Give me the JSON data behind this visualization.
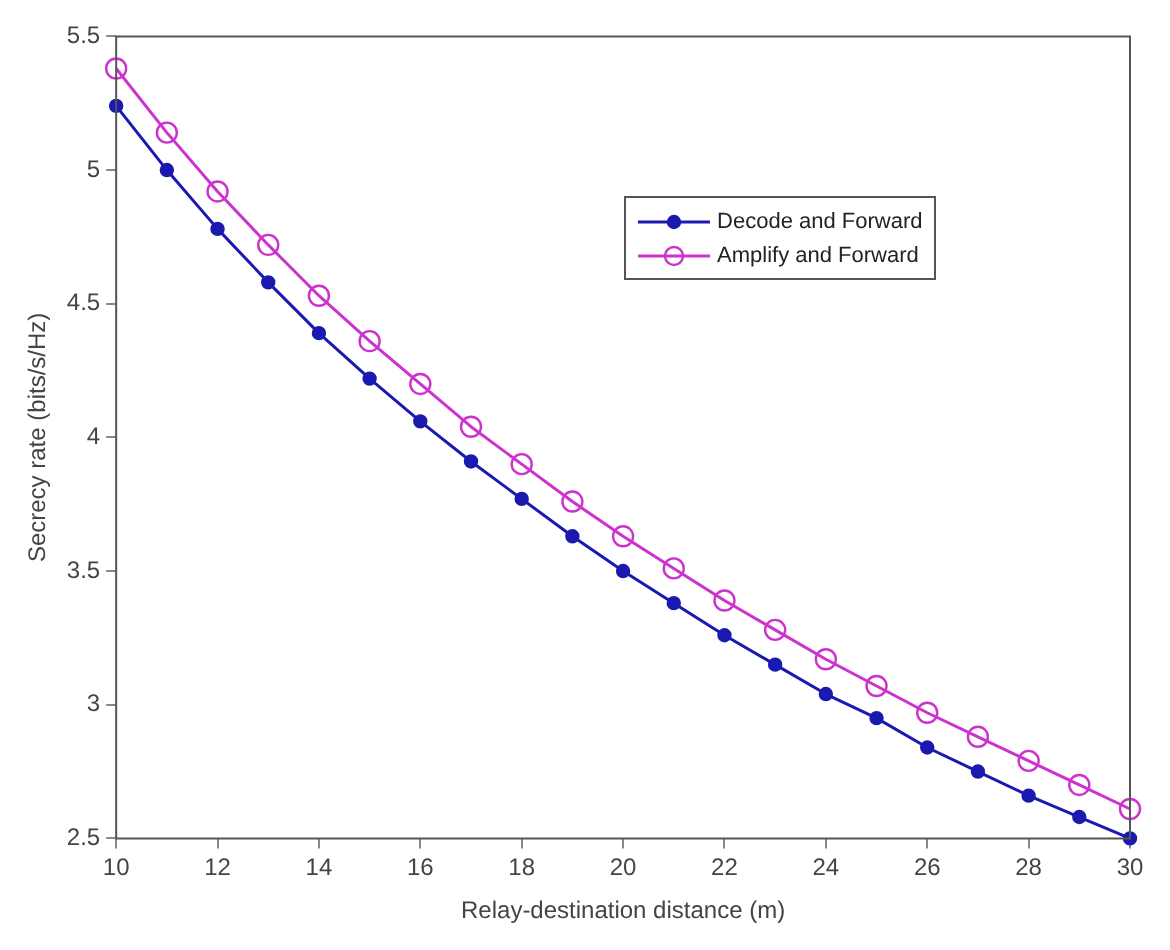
{
  "chart_data": {
    "type": "line",
    "xlabel": "Relay-destination distance (m)",
    "ylabel": "Secrecy rate (bits/s/Hz)",
    "x": [
      10,
      11,
      12,
      13,
      14,
      15,
      16,
      17,
      18,
      19,
      20,
      21,
      22,
      23,
      24,
      25,
      26,
      27,
      28,
      29,
      30
    ],
    "series": [
      {
        "name": "Decode and Forward",
        "color": "#1a1ab0",
        "values": [
          5.24,
          5.0,
          4.78,
          4.58,
          4.39,
          4.22,
          4.06,
          3.91,
          3.77,
          3.63,
          3.5,
          3.38,
          3.26,
          3.15,
          3.04,
          2.95,
          2.84,
          2.75,
          2.66,
          2.58,
          2.5
        ]
      },
      {
        "name": "Amplify and Forward",
        "color": "#cc33cc",
        "values": [
          5.38,
          5.14,
          4.92,
          4.72,
          4.53,
          4.36,
          4.2,
          4.04,
          3.9,
          3.76,
          3.63,
          3.51,
          3.39,
          3.28,
          3.17,
          3.07,
          2.97,
          2.88,
          2.79,
          2.7,
          2.61
        ]
      }
    ],
    "xlim": [
      10,
      30
    ],
    "xticks": [
      10,
      12,
      14,
      16,
      18,
      20,
      22,
      24,
      26,
      28,
      30
    ],
    "ylim": [
      2.5,
      5.5
    ],
    "yticks": [
      2.5,
      3,
      3.5,
      4,
      4.5,
      5,
      5.5
    ],
    "grid": false,
    "legend": "top right",
    "marker": "circle",
    "line_style": "solid"
  }
}
